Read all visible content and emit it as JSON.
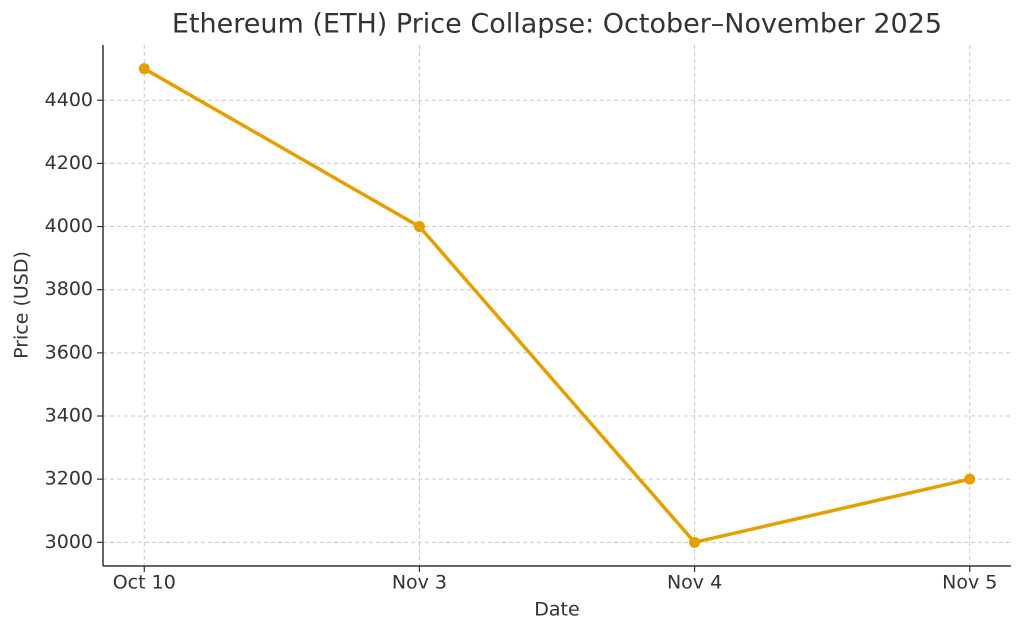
{
  "chart_data": {
    "type": "line",
    "title": "Ethereum (ETH) Price Collapse: October–November 2025",
    "xlabel": "Date",
    "ylabel": "Price (USD)",
    "categories": [
      "Oct 10",
      "Nov 3",
      "Nov 4",
      "Nov 5"
    ],
    "values": [
      4500,
      4000,
      3000,
      3200
    ],
    "color": "#e69f00",
    "ylim": [
      2925,
      4575
    ],
    "yticks": [
      3000,
      3200,
      3400,
      3600,
      3800,
      4000,
      4200,
      4400
    ],
    "grid": true
  }
}
